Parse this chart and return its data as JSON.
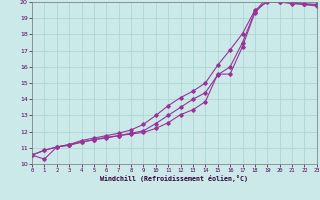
{
  "xlabel": "Windchill (Refroidissement éolien,°C)",
  "xlim": [
    0,
    23
  ],
  "ylim": [
    10,
    20
  ],
  "xticks": [
    0,
    1,
    2,
    3,
    4,
    5,
    6,
    7,
    8,
    9,
    10,
    11,
    12,
    13,
    14,
    15,
    16,
    17,
    18,
    19,
    20,
    21,
    22,
    23
  ],
  "yticks": [
    10,
    11,
    12,
    13,
    14,
    15,
    16,
    17,
    18,
    19,
    20
  ],
  "background_color": "#cbe9e9",
  "grid_color": "#a8d4cc",
  "line_color": "#993399",
  "line1_x": [
    0,
    1,
    2,
    3,
    4,
    5,
    6,
    7,
    8,
    9,
    10,
    11,
    12,
    13,
    14,
    15,
    16,
    17,
    18,
    19,
    20,
    21,
    22,
    23
  ],
  "line1_y": [
    10.55,
    10.85,
    11.05,
    11.15,
    11.35,
    11.5,
    11.6,
    11.75,
    11.85,
    11.95,
    12.2,
    12.55,
    13.05,
    13.35,
    13.85,
    15.55,
    15.55,
    17.25,
    19.35,
    20.1,
    20.05,
    20.0,
    19.9,
    19.85
  ],
  "line2_x": [
    0,
    1,
    2,
    3,
    4,
    5,
    6,
    7,
    8,
    9,
    10,
    11,
    12,
    13,
    14,
    15,
    16,
    17,
    18,
    19,
    20,
    21,
    22,
    23
  ],
  "line2_y": [
    10.55,
    10.3,
    11.05,
    11.2,
    11.35,
    11.5,
    11.65,
    11.75,
    11.9,
    12.05,
    12.5,
    13.0,
    13.5,
    14.0,
    14.4,
    15.5,
    16.0,
    17.5,
    19.4,
    20.3,
    20.0,
    19.9,
    19.85,
    19.8
  ],
  "line3_x": [
    0,
    1,
    2,
    3,
    4,
    5,
    6,
    7,
    8,
    9,
    10,
    11,
    12,
    13,
    14,
    15,
    16,
    17,
    18,
    19,
    20,
    21,
    22,
    23
  ],
  "line3_y": [
    10.55,
    10.85,
    11.05,
    11.2,
    11.45,
    11.6,
    11.75,
    11.9,
    12.1,
    12.45,
    13.0,
    13.6,
    14.1,
    14.5,
    15.0,
    16.1,
    17.05,
    18.05,
    19.5,
    20.0,
    20.0,
    19.95,
    19.85,
    19.75
  ]
}
